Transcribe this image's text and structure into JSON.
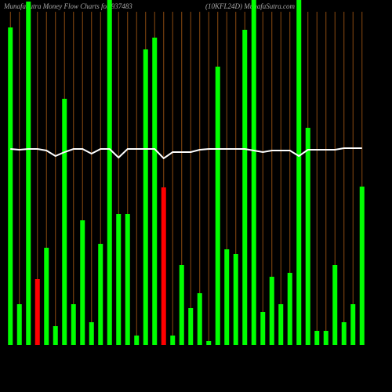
{
  "chart_data": {
    "type": "bar",
    "title": "MunafaSutra  Money Flow  Charts for 937483",
    "subtitle": "(10KFL24D) MunafaSutra.com",
    "ylim": [
      0,
      440
    ],
    "series": [
      {
        "name": "money-flow",
        "colors": [
          "#00ff00",
          "#00ff00",
          "#00ff00",
          "#ff0000",
          "#00ff00",
          "#00ff00",
          "#00ff00",
          "#00ff00",
          "#00ff00",
          "#00ff00",
          "#00ff00",
          "#00ff00",
          "#00ff00",
          "#00ff00",
          "#00ff00",
          "#00ff00",
          "#00ff00",
          "#ff0000",
          "#00ff00",
          "#00ff00",
          "#00ff00",
          "#00ff00",
          "#00ff00",
          "#00ff00",
          "#00ff00",
          "#00ff00",
          "#00ff00",
          "#00ff00",
          "#00ff00",
          "#00ff00",
          "#00ff00",
          "#00ff00",
          "#00ff00",
          "#00ff00",
          "#00ff00",
          "#00ff00",
          "#00ff00",
          "#00ff00",
          "#00ff00",
          "#00ff00"
        ],
        "values": [
          405,
          52,
          438,
          84,
          124,
          24,
          314,
          52,
          159,
          29,
          129,
          440,
          167,
          167,
          12,
          377,
          392,
          201,
          12,
          102,
          47,
          66,
          5,
          355,
          122,
          116,
          402,
          440,
          42,
          87,
          52,
          92,
          440,
          277,
          18,
          18,
          102,
          29,
          52,
          202
        ]
      },
      {
        "name": "trend",
        "type": "line",
        "color": "#ffffff",
        "values": [
          250,
          249,
          250,
          250,
          248,
          241,
          246,
          250,
          250,
          244,
          250,
          250,
          239,
          250,
          250,
          250,
          250,
          238,
          246,
          246,
          246,
          249,
          250,
          250,
          250,
          250,
          250,
          248,
          246,
          248,
          248,
          248,
          241,
          249,
          249,
          249,
          249,
          251,
          251,
          251
        ]
      }
    ]
  }
}
